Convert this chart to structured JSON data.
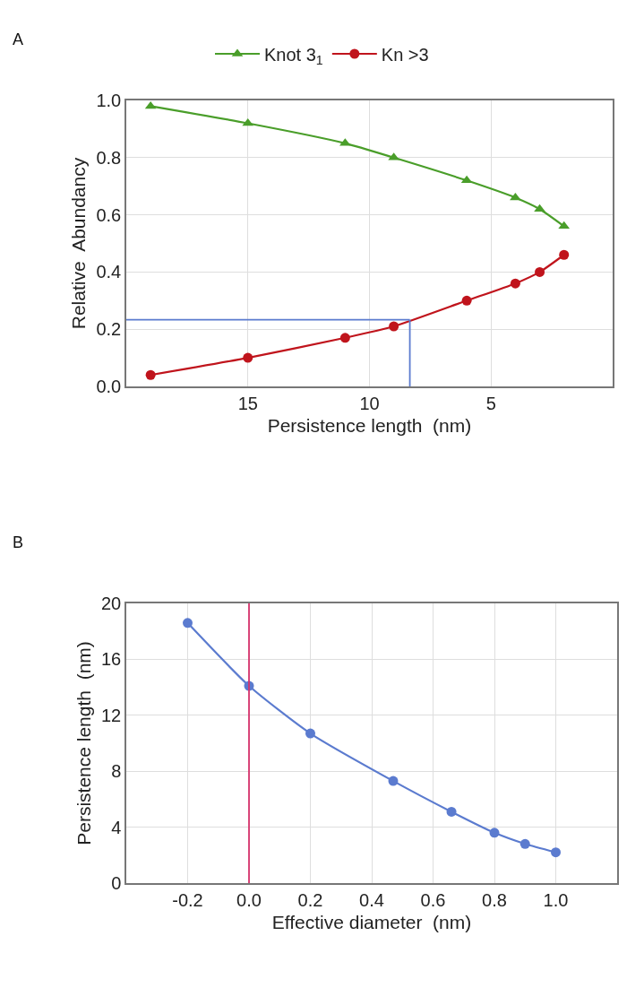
{
  "chart_data": [
    {
      "type": "line",
      "xlabel": "Persistence length  (nm)",
      "ylabel": "Relative  Abundancy",
      "annotations": [
        "A"
      ],
      "x": [
        19,
        15,
        11,
        9,
        6,
        4,
        3,
        2
      ],
      "series": [
        {
          "name": "Knot 3$_{1}$",
          "color": "#4a9e2a",
          "marker": "triangle",
          "values": [
            0.98,
            0.92,
            0.85,
            0.8,
            0.72,
            0.66,
            0.62,
            0.56
          ]
        },
        {
          "name": "Kn >3",
          "color": "#c0141c",
          "marker": "circle",
          "values": [
            0.04,
            0.1,
            0.17,
            0.21,
            0.3,
            0.36,
            0.4,
            0.46
          ]
        }
      ],
      "xlim": [
        20,
        0
      ],
      "xticks": [
        15,
        10,
        5
      ],
      "ylim": [
        0,
        1
      ],
      "yticks": [
        {
          "value": 0,
          "label": "0.0"
        },
        0.2,
        0.4,
        0.6,
        0.8,
        {
          "value": 1,
          "label": "1.0"
        }
      ],
      "ref_lines": [
        {
          "axis": "y",
          "value": 0.233,
          "color": "#5b7bcf"
        },
        {
          "axis": "x",
          "value": 8.34,
          "color": "#5b7bcf"
        }
      ],
      "grid": true,
      "legend": "top",
      "line_style": "solid"
    },
    {
      "type": "line",
      "xlabel": "Effective diameter  (nm)",
      "ylabel": "Persistence length  (nm)",
      "annotations": [
        "B"
      ],
      "x": [
        -0.2,
        0.0,
        0.2,
        0.47,
        0.66,
        0.8,
        0.9,
        1.0
      ],
      "series": [
        {
          "color": "#5b7bcf",
          "values": [
            18.6,
            14.1,
            10.7,
            7.3,
            5.1,
            3.6,
            2.8,
            2.2
          ]
        }
      ],
      "xlim": [
        -0.4,
        1.2
      ],
      "xticks": [
        -0.2,
        {
          "value": 0,
          "label": "0.0"
        },
        0.2,
        0.4,
        0.6,
        0.8,
        {
          "value": 1,
          "label": "1.0"
        }
      ],
      "ylim": [
        0,
        20
      ],
      "yticks": [
        0,
        4,
        8,
        12,
        16,
        20
      ],
      "ref_lines": [
        {
          "axis": "x",
          "value": 0,
          "color": "#d6336c"
        }
      ],
      "grid": true,
      "legend": false,
      "marker": "circle",
      "line_style": "solid"
    }
  ]
}
